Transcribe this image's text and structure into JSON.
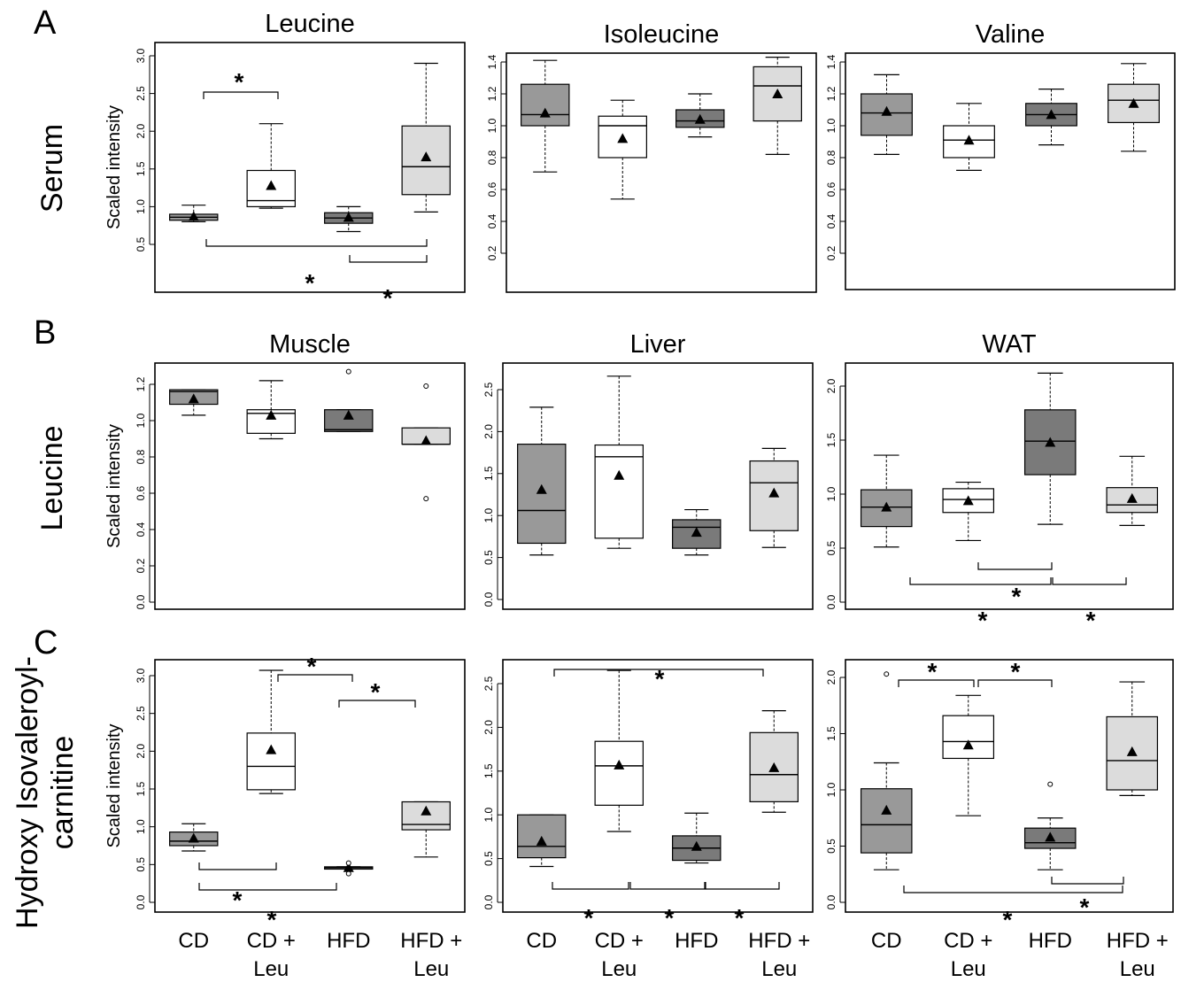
{
  "figure": {
    "sections": [
      "A",
      "B",
      "C"
    ],
    "row_labels": [
      "Serum",
      "Leucine",
      "Hydroxy Isovaleroyl-",
      "carnitine"
    ],
    "x_categories": [
      [
        "CD",
        ""
      ],
      [
        "CD +",
        "Leu"
      ],
      [
        "HFD",
        ""
      ],
      [
        "HFD +",
        "Leu"
      ]
    ],
    "significance_mark": "*",
    "colors": {
      "CD": "#999999",
      "CD_Leu": "#ffffff",
      "HFD": "#7a7a7a",
      "HFD_Leu": "#dcdcdc"
    }
  },
  "chart_data": [
    {
      "type": "box",
      "title": "Leucine",
      "ylabel": "Scaled intensity",
      "ylim": [
        0,
        3.0
      ],
      "ticks": [
        "0.5",
        "1.0",
        "1.5",
        "2.0",
        "2.5",
        "3.0"
      ],
      "boxes": [
        {
          "group": "CD",
          "min": 0.8,
          "q1": 0.82,
          "median": 0.86,
          "q3": 0.9,
          "max": 1.02,
          "mean": 0.87,
          "outliers": []
        },
        {
          "group": "CD + Leu",
          "min": 0.98,
          "q1": 1.0,
          "median": 1.08,
          "q3": 1.48,
          "max": 2.1,
          "mean": 1.28,
          "outliers": []
        },
        {
          "group": "HFD",
          "min": 0.67,
          "q1": 0.78,
          "median": 0.85,
          "q3": 0.92,
          "max": 1.0,
          "mean": 0.86,
          "outliers": []
        },
        {
          "group": "HFD + Leu",
          "min": 0.93,
          "q1": 1.16,
          "median": 1.53,
          "q3": 2.07,
          "max": 2.9,
          "mean": 1.66,
          "outliers": []
        }
      ]
    },
    {
      "type": "box",
      "title": "Isoleucine",
      "ylabel": "",
      "ylim": [
        0,
        1.45
      ],
      "ticks": [
        "0.2",
        "0.4",
        "0.6",
        "0.8",
        "1.0",
        "1.2",
        "1.4"
      ],
      "boxes": [
        {
          "group": "CD",
          "min": 0.71,
          "q1": 1.0,
          "median": 1.07,
          "q3": 1.26,
          "max": 1.41,
          "mean": 1.08,
          "outliers": []
        },
        {
          "group": "CD + Leu",
          "min": 0.54,
          "q1": 0.8,
          "median": 1.0,
          "q3": 1.06,
          "max": 1.16,
          "mean": 0.92,
          "outliers": []
        },
        {
          "group": "HFD",
          "min": 0.93,
          "q1": 0.99,
          "median": 1.03,
          "q3": 1.1,
          "max": 1.2,
          "mean": 1.04,
          "outliers": []
        },
        {
          "group": "HFD + Leu",
          "min": 0.82,
          "q1": 1.03,
          "median": 1.25,
          "q3": 1.37,
          "max": 1.43,
          "mean": 1.2,
          "outliers": []
        }
      ]
    },
    {
      "type": "box",
      "title": "Valine",
      "ylabel": "",
      "ylim": [
        0,
        1.45
      ],
      "ticks": [
        "0.2",
        "0.4",
        "0.6",
        "0.8",
        "1.0",
        "1.2",
        "1.4"
      ],
      "boxes": [
        {
          "group": "CD",
          "min": 0.82,
          "q1": 0.94,
          "median": 1.08,
          "q3": 1.2,
          "max": 1.32,
          "mean": 1.09,
          "outliers": []
        },
        {
          "group": "CD + Leu",
          "min": 0.72,
          "q1": 0.8,
          "median": 0.91,
          "q3": 1.0,
          "max": 1.14,
          "mean": 0.91,
          "outliers": []
        },
        {
          "group": "HFD",
          "min": 0.88,
          "q1": 1.0,
          "median": 1.07,
          "q3": 1.14,
          "max": 1.23,
          "mean": 1.07,
          "outliers": []
        },
        {
          "group": "HFD + Leu",
          "min": 0.84,
          "q1": 1.02,
          "median": 1.16,
          "q3": 1.26,
          "max": 1.39,
          "mean": 1.14,
          "outliers": []
        }
      ]
    },
    {
      "type": "box",
      "title": "Muscle",
      "ylabel": "Scaled intensity",
      "ylim": [
        0,
        1.3
      ],
      "ticks": [
        "0.0",
        "0.2",
        "0.4",
        "0.6",
        "0.8",
        "1.0",
        "1.2"
      ],
      "boxes": [
        {
          "group": "CD",
          "min": 1.03,
          "q1": 1.09,
          "median": 1.16,
          "q3": 1.17,
          "max": 1.17,
          "mean": 1.12,
          "outliers": []
        },
        {
          "group": "CD + Leu",
          "min": 0.9,
          "q1": 0.93,
          "median": 1.04,
          "q3": 1.06,
          "max": 1.22,
          "mean": 1.03,
          "outliers": []
        },
        {
          "group": "HFD",
          "min": 0.94,
          "q1": 0.94,
          "median": 0.95,
          "q3": 1.06,
          "max": 1.06,
          "mean": 1.03,
          "outliers": [
            1.27
          ]
        },
        {
          "group": "HFD + Leu",
          "min": 0.87,
          "q1": 0.87,
          "median": 0.87,
          "q3": 0.96,
          "max": 0.96,
          "mean": 0.89,
          "outliers": [
            1.19,
            0.57
          ]
        }
      ]
    },
    {
      "type": "box",
      "title": "Liver",
      "ylabel": "",
      "ylim": [
        -0.1,
        2.7
      ],
      "ticks": [
        "0.0",
        "0.5",
        "1.0",
        "1.5",
        "2.0",
        "2.5"
      ],
      "boxes": [
        {
          "group": "CD",
          "min": 0.53,
          "q1": 0.67,
          "median": 1.06,
          "q3": 1.85,
          "max": 2.29,
          "mean": 1.31,
          "outliers": []
        },
        {
          "group": "CD + Leu",
          "min": 0.61,
          "q1": 0.73,
          "median": 1.7,
          "q3": 1.84,
          "max": 2.66,
          "mean": 1.48,
          "outliers": []
        },
        {
          "group": "HFD",
          "min": 0.53,
          "q1": 0.61,
          "median": 0.86,
          "q3": 0.95,
          "max": 1.07,
          "mean": 0.8,
          "outliers": []
        },
        {
          "group": "HFD + Leu",
          "min": 0.62,
          "q1": 0.82,
          "median": 1.39,
          "q3": 1.65,
          "max": 1.8,
          "mean": 1.27,
          "outliers": []
        }
      ]
    },
    {
      "type": "box",
      "title": "WAT",
      "ylabel": "",
      "ylim": [
        -0.1,
        2.2
      ],
      "ticks": [
        "0.0",
        "0.5",
        "1.0",
        "1.5",
        "2.0"
      ],
      "boxes": [
        {
          "group": "CD",
          "min": 0.51,
          "q1": 0.7,
          "median": 0.88,
          "q3": 1.04,
          "max": 1.36,
          "mean": 0.88,
          "outliers": []
        },
        {
          "group": "CD + Leu",
          "min": 0.57,
          "q1": 0.83,
          "median": 0.95,
          "q3": 1.05,
          "max": 1.11,
          "mean": 0.94,
          "outliers": []
        },
        {
          "group": "HFD",
          "min": 0.72,
          "q1": 1.18,
          "median": 1.49,
          "q3": 1.78,
          "max": 2.12,
          "mean": 1.48,
          "outliers": []
        },
        {
          "group": "HFD + Leu",
          "min": 0.71,
          "q1": 0.83,
          "median": 0.9,
          "q3": 1.06,
          "max": 1.35,
          "mean": 0.96,
          "outliers": []
        }
      ]
    },
    {
      "type": "box",
      "title": "",
      "ylabel": "Scaled intensity",
      "ylim": [
        -0.1,
        3.2
      ],
      "ticks": [
        "0.0",
        "0.5",
        "1.0",
        "1.5",
        "2.0",
        "2.5",
        "3.0"
      ],
      "boxes": [
        {
          "group": "CD",
          "min": 0.68,
          "q1": 0.75,
          "median": 0.81,
          "q3": 0.93,
          "max": 1.04,
          "mean": 0.85,
          "outliers": []
        },
        {
          "group": "CD + Leu",
          "min": 1.44,
          "q1": 1.49,
          "median": 1.8,
          "q3": 2.24,
          "max": 3.07,
          "mean": 2.02,
          "outliers": []
        },
        {
          "group": "HFD",
          "min": 0.44,
          "q1": 0.44,
          "median": 0.46,
          "q3": 0.47,
          "max": 0.47,
          "mean": 0.46,
          "outliers": [
            0.52,
            0.38
          ]
        },
        {
          "group": "HFD + Leu",
          "min": 0.6,
          "q1": 0.96,
          "median": 1.03,
          "q3": 1.33,
          "max": 1.33,
          "mean": 1.21,
          "outliers": []
        }
      ]
    },
    {
      "type": "box",
      "title": "",
      "ylabel": "",
      "ylim": [
        -0.1,
        2.7
      ],
      "ticks": [
        "0.0",
        "0.5",
        "1.0",
        "1.5",
        "2.0",
        "2.5"
      ],
      "boxes": [
        {
          "group": "CD",
          "min": 0.41,
          "q1": 0.51,
          "median": 0.64,
          "q3": 1.0,
          "max": 1.0,
          "mean": 0.7,
          "outliers": []
        },
        {
          "group": "CD + Leu",
          "min": 0.81,
          "q1": 1.11,
          "median": 1.56,
          "q3": 1.84,
          "max": 2.65,
          "mean": 1.57,
          "outliers": []
        },
        {
          "group": "HFD",
          "min": 0.45,
          "q1": 0.48,
          "median": 0.62,
          "q3": 0.76,
          "max": 1.02,
          "mean": 0.64,
          "outliers": []
        },
        {
          "group": "HFD + Leu",
          "min": 1.03,
          "q1": 1.15,
          "median": 1.46,
          "q3": 1.94,
          "max": 2.19,
          "mean": 1.54,
          "outliers": []
        }
      ]
    },
    {
      "type": "box",
      "title": "",
      "ylabel": "",
      "ylim": [
        -0.1,
        2.1
      ],
      "ticks": [
        "0.0",
        "0.5",
        "1.0",
        "1.5",
        "2.0"
      ],
      "boxes": [
        {
          "group": "CD",
          "min": 0.29,
          "q1": 0.44,
          "median": 0.69,
          "q3": 1.01,
          "max": 1.24,
          "mean": 0.82,
          "outliers": [
            2.03
          ]
        },
        {
          "group": "CD + Leu",
          "min": 0.77,
          "q1": 1.28,
          "median": 1.43,
          "q3": 1.66,
          "max": 1.84,
          "mean": 1.4,
          "outliers": []
        },
        {
          "group": "HFD",
          "min": 0.29,
          "q1": 0.48,
          "median": 0.53,
          "q3": 0.66,
          "max": 0.75,
          "mean": 0.58,
          "outliers": [
            1.05
          ]
        },
        {
          "group": "HFD + Leu",
          "min": 0.95,
          "q1": 1.0,
          "median": 1.26,
          "q3": 1.65,
          "max": 1.96,
          "mean": 1.34,
          "outliers": []
        }
      ]
    }
  ]
}
